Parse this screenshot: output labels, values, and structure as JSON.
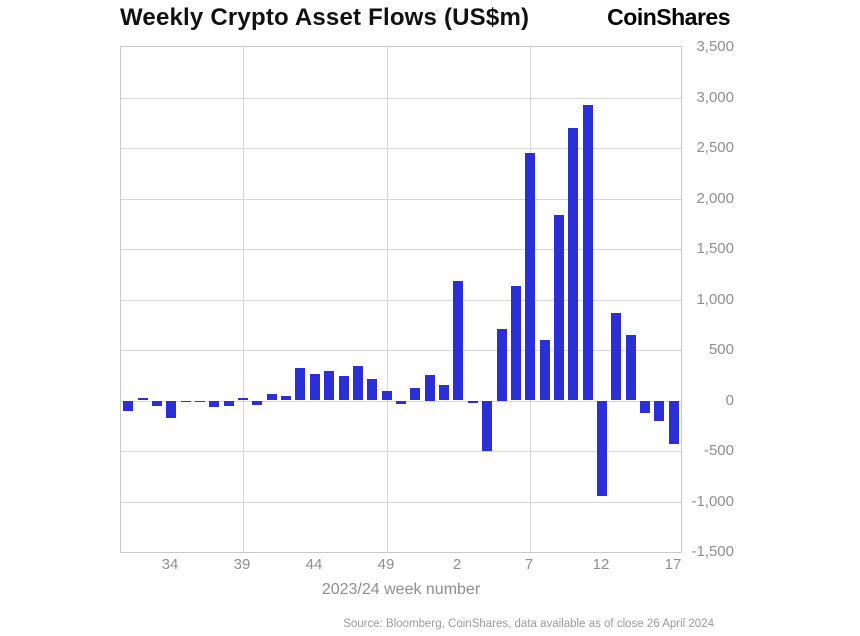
{
  "header": {
    "title": "Weekly Crypto Asset Flows (US$m)",
    "logo": "CoinShares"
  },
  "chart_data": {
    "type": "bar",
    "title": "Weekly Crypto Asset Flows (US$m)",
    "xlabel": "2023/24 week number",
    "ylabel": "",
    "ylim": [
      -1500,
      3500
    ],
    "grid": true,
    "legend": "none",
    "bar_color": "#2b2fd6",
    "grid_color": "#d6d6d6",
    "categories": [
      "31",
      "32",
      "33",
      "34",
      "35",
      "36",
      "37",
      "38",
      "39",
      "40",
      "41",
      "42",
      "43",
      "44",
      "45",
      "46",
      "47",
      "48",
      "49",
      "50",
      "51",
      "52",
      "1",
      "2",
      "3",
      "4",
      "5",
      "6",
      "7",
      "8",
      "9",
      "10",
      "11",
      "12",
      "13",
      "14",
      "15",
      "16",
      "17"
    ],
    "values": [
      -107,
      29,
      -55,
      -168,
      -15,
      -10,
      -59,
      -54,
      21,
      -49,
      66,
      44,
      326,
      261,
      293,
      240,
      346,
      211,
      90,
      -32,
      125,
      250,
      151,
      1180,
      -21,
      -500,
      708,
      1130,
      2450,
      598,
      1840,
      2700,
      2930,
      -942,
      862,
      646,
      -126,
      -206,
      -435
    ],
    "xtick_labels": [
      "34",
      "39",
      "44",
      "49",
      "2",
      "7",
      "12",
      "17"
    ],
    "vertical_grid_at": [
      "39",
      "49",
      "7"
    ],
    "yticks": [
      {
        "value": 3500,
        "label": "3,500"
      },
      {
        "value": 3000,
        "label": "3,000"
      },
      {
        "value": 2500,
        "label": "2,500"
      },
      {
        "value": 2000,
        "label": "2,000"
      },
      {
        "value": 1500,
        "label": "1,500"
      },
      {
        "value": 1000,
        "label": "1,000"
      },
      {
        "value": 500,
        "label": "500"
      },
      {
        "value": 0,
        "label": "0"
      },
      {
        "value": -500,
        "label": "-500"
      },
      {
        "value": -1000,
        "label": "-1,000"
      },
      {
        "value": -1500,
        "label": "-1,500"
      }
    ]
  },
  "footer": {
    "source": "Source: Bloomberg, CoinShares, data available as of close 26 April 2024"
  }
}
